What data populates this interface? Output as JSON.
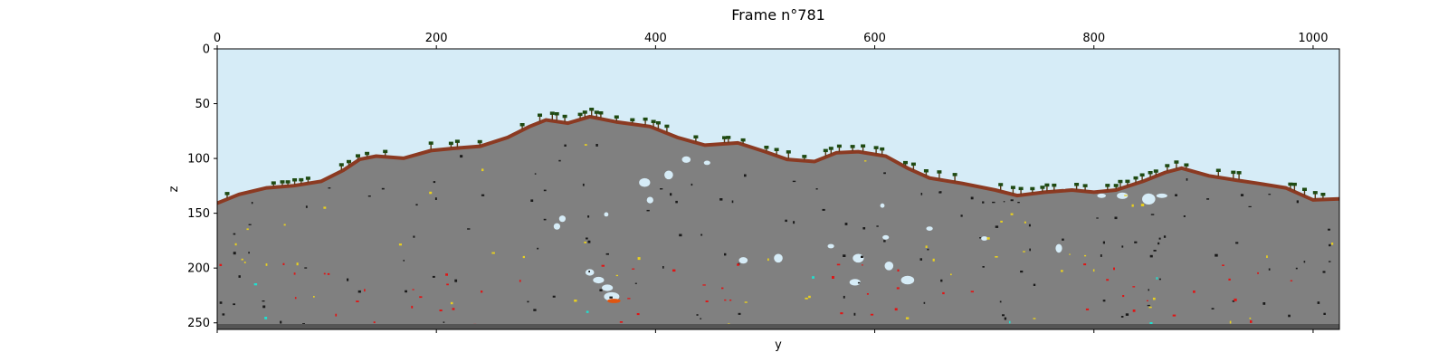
{
  "chart_data": {
    "type": "heatmap",
    "title": "Frame n°781",
    "xlabel": "y",
    "ylabel": "z",
    "xlim": [
      0,
      1024
    ],
    "ylim": [
      256,
      0
    ],
    "x_ticks": [
      0,
      200,
      400,
      600,
      800,
      1000
    ],
    "y_ticks": [
      0,
      50,
      100,
      150,
      200,
      250
    ],
    "x_ticks_position": "top",
    "grid": false,
    "colors": {
      "sky": "#d6ecf7",
      "rock": "#808080",
      "dirt": "#8b3a22",
      "tree": "#1f4a12",
      "cave": "#d6ecf7",
      "bedrock": "#555555",
      "coal": "#1a1a1a",
      "red_ore": "#e01515",
      "yellow_ore": "#e8d020",
      "cyan_ore": "#20e0d0",
      "lava": "#e05510"
    },
    "surface_profile": [
      {
        "y": 0,
        "z": 140
      },
      {
        "y": 20,
        "z": 132
      },
      {
        "y": 45,
        "z": 126
      },
      {
        "y": 70,
        "z": 124
      },
      {
        "y": 95,
        "z": 120
      },
      {
        "y": 115,
        "z": 110
      },
      {
        "y": 130,
        "z": 100
      },
      {
        "y": 145,
        "z": 97
      },
      {
        "y": 170,
        "z": 99
      },
      {
        "y": 195,
        "z": 92
      },
      {
        "y": 215,
        "z": 90
      },
      {
        "y": 240,
        "z": 88
      },
      {
        "y": 265,
        "z": 80
      },
      {
        "y": 285,
        "z": 70
      },
      {
        "y": 300,
        "z": 64
      },
      {
        "y": 320,
        "z": 67
      },
      {
        "y": 340,
        "z": 61
      },
      {
        "y": 365,
        "z": 66
      },
      {
        "y": 395,
        "z": 70
      },
      {
        "y": 420,
        "z": 80
      },
      {
        "y": 445,
        "z": 87
      },
      {
        "y": 475,
        "z": 85
      },
      {
        "y": 500,
        "z": 93
      },
      {
        "y": 520,
        "z": 100
      },
      {
        "y": 545,
        "z": 102
      },
      {
        "y": 565,
        "z": 94
      },
      {
        "y": 585,
        "z": 93
      },
      {
        "y": 610,
        "z": 97
      },
      {
        "y": 630,
        "z": 108
      },
      {
        "y": 650,
        "z": 117
      },
      {
        "y": 680,
        "z": 122
      },
      {
        "y": 710,
        "z": 128
      },
      {
        "y": 730,
        "z": 133
      },
      {
        "y": 755,
        "z": 130
      },
      {
        "y": 780,
        "z": 128
      },
      {
        "y": 800,
        "z": 130
      },
      {
        "y": 820,
        "z": 128
      },
      {
        "y": 845,
        "z": 120
      },
      {
        "y": 865,
        "z": 112
      },
      {
        "y": 880,
        "z": 108
      },
      {
        "y": 905,
        "z": 115
      },
      {
        "y": 930,
        "z": 119
      },
      {
        "y": 950,
        "z": 122
      },
      {
        "y": 975,
        "z": 126
      },
      {
        "y": 1000,
        "z": 137
      },
      {
        "y": 1024,
        "z": 136
      }
    ],
    "caves": [
      {
        "y": 390,
        "z": 122,
        "ry": 5,
        "rz": 4
      },
      {
        "y": 412,
        "z": 115,
        "ry": 4,
        "rz": 4
      },
      {
        "y": 395,
        "z": 138,
        "ry": 3,
        "rz": 3
      },
      {
        "y": 428,
        "z": 101,
        "ry": 4,
        "rz": 3
      },
      {
        "y": 447,
        "z": 104,
        "ry": 3,
        "rz": 2
      },
      {
        "y": 315,
        "z": 155,
        "ry": 3,
        "rz": 3
      },
      {
        "y": 310,
        "z": 162,
        "ry": 3,
        "rz": 3
      },
      {
        "y": 355,
        "z": 151,
        "ry": 2,
        "rz": 2
      },
      {
        "y": 340,
        "z": 204,
        "ry": 4,
        "rz": 3
      },
      {
        "y": 348,
        "z": 211,
        "ry": 5,
        "rz": 3
      },
      {
        "y": 356,
        "z": 218,
        "ry": 5,
        "rz": 3
      },
      {
        "y": 360,
        "z": 226,
        "ry": 7,
        "rz": 4
      },
      {
        "y": 480,
        "z": 193,
        "ry": 4,
        "rz": 3
      },
      {
        "y": 512,
        "z": 191,
        "ry": 4,
        "rz": 4
      },
      {
        "y": 585,
        "z": 191,
        "ry": 5,
        "rz": 4
      },
      {
        "y": 582,
        "z": 213,
        "ry": 5,
        "rz": 3
      },
      {
        "y": 613,
        "z": 198,
        "ry": 4,
        "rz": 4
      },
      {
        "y": 630,
        "z": 211,
        "ry": 6,
        "rz": 4
      },
      {
        "y": 560,
        "z": 180,
        "ry": 3,
        "rz": 2
      },
      {
        "y": 610,
        "z": 172,
        "ry": 3,
        "rz": 2
      },
      {
        "y": 607,
        "z": 143,
        "ry": 2,
        "rz": 2
      },
      {
        "y": 650,
        "z": 164,
        "ry": 3,
        "rz": 2
      },
      {
        "y": 700,
        "z": 173,
        "ry": 3,
        "rz": 2
      },
      {
        "y": 768,
        "z": 182,
        "ry": 3,
        "rz": 4
      },
      {
        "y": 773,
        "z": 126,
        "ry": 2,
        "rz": 2
      },
      {
        "y": 826,
        "z": 134,
        "ry": 5,
        "rz": 3
      },
      {
        "y": 850,
        "z": 137,
        "ry": 6,
        "rz": 5
      },
      {
        "y": 862,
        "z": 134,
        "ry": 5,
        "rz": 2
      },
      {
        "y": 807,
        "z": 134,
        "ry": 4,
        "rz": 2
      }
    ],
    "lava_pools": [
      {
        "y": 362,
        "z": 230,
        "ry": 6,
        "rz": 2
      }
    ]
  }
}
